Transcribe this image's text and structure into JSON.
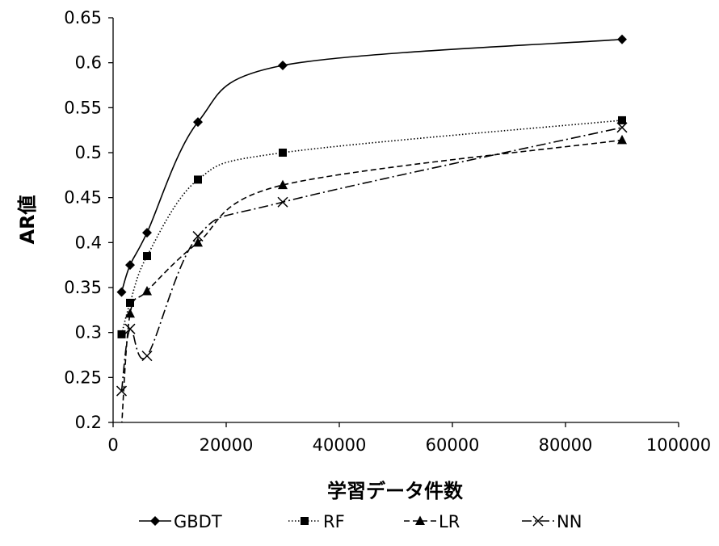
{
  "chart_data": {
    "type": "line",
    "title": "",
    "xlabel": "学習データ件数",
    "ylabel": "AR値",
    "xlim": [
      0,
      100000
    ],
    "ylim": [
      0.2,
      0.65
    ],
    "x_ticks": [
      0,
      20000,
      40000,
      60000,
      80000,
      100000
    ],
    "x_tick_labels": [
      "0",
      "20000",
      "40000",
      "60000",
      "80000",
      "100000"
    ],
    "y_ticks": [
      0.2,
      0.25,
      0.3,
      0.35,
      0.4,
      0.45,
      0.5,
      0.55,
      0.6,
      0.65
    ],
    "y_tick_labels": [
      "0.2",
      "0.25",
      "0.3",
      "0.35",
      "0.4",
      "0.45",
      "0.5",
      "0.55",
      "0.6",
      "0.65"
    ],
    "grid": false,
    "legend_position": "bottom",
    "series": [
      {
        "name": "GBDT",
        "line_style": "solid",
        "marker": "diamond",
        "color": "#000000",
        "x": [
          1500,
          3000,
          6000,
          15000,
          30000,
          90000
        ],
        "y": [
          0.345,
          0.375,
          0.411,
          0.534,
          0.597,
          0.626
        ]
      },
      {
        "name": "RF",
        "line_style": "dotted",
        "marker": "square",
        "color": "#000000",
        "x": [
          1500,
          3000,
          6000,
          15000,
          30000,
          90000
        ],
        "y": [
          0.298,
          0.333,
          0.385,
          0.47,
          0.5,
          0.536
        ]
      },
      {
        "name": "LR",
        "line_style": "dashed",
        "marker": "triangle",
        "color": "#000000",
        "x": [
          1500,
          3000,
          6000,
          15000,
          30000,
          90000
        ],
        "y": [
          0.195,
          0.321,
          0.346,
          0.4,
          0.464,
          0.514
        ]
      },
      {
        "name": "NN",
        "line_style": "dashdot",
        "marker": "x",
        "color": "#000000",
        "x": [
          1500,
          3000,
          6000,
          15000,
          30000,
          90000
        ],
        "y": [
          0.235,
          0.304,
          0.274,
          0.407,
          0.445,
          0.528
        ]
      }
    ]
  }
}
